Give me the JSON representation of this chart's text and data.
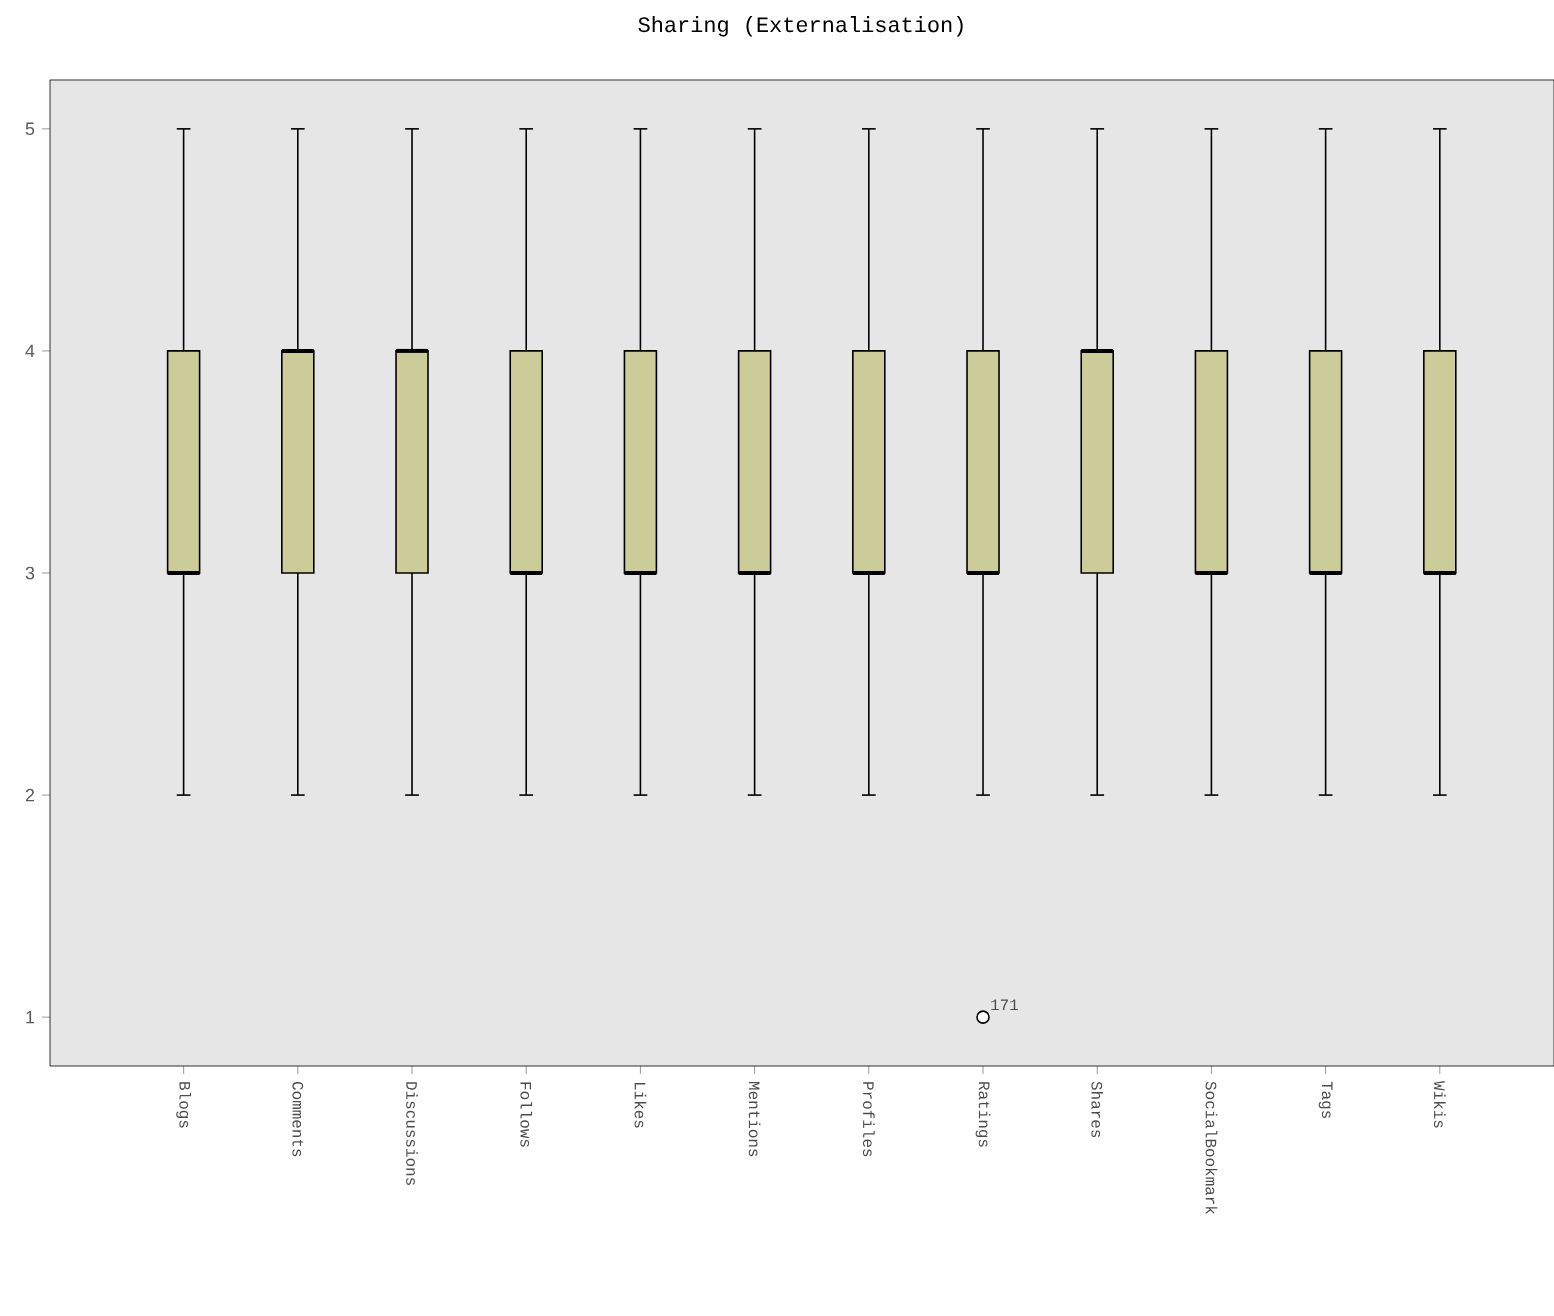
{
  "chart_data": {
    "type": "box",
    "title": "Sharing (Externalisation)",
    "categories": [
      "Blogs",
      "Comments",
      "Discussions",
      "Follows",
      "Likes",
      "Mentions",
      "Profiles",
      "Ratings",
      "Shares",
      "SocialBookmark",
      "Tags",
      "Wikis"
    ],
    "color": "#cccc99",
    "boxes": [
      {
        "low": 2,
        "q1": 3,
        "median": 3,
        "q3": 4,
        "high": 5
      },
      {
        "low": 2,
        "q1": 3,
        "median": 4,
        "q3": 4,
        "high": 5
      },
      {
        "low": 2,
        "q1": 3,
        "median": 4,
        "q3": 4,
        "high": 5
      },
      {
        "low": 2,
        "q1": 3,
        "median": 3,
        "q3": 4,
        "high": 5
      },
      {
        "low": 2,
        "q1": 3,
        "median": 3,
        "q3": 4,
        "high": 5
      },
      {
        "low": 2,
        "q1": 3,
        "median": 3,
        "q3": 4,
        "high": 5
      },
      {
        "low": 2,
        "q1": 3,
        "median": 3,
        "q3": 4,
        "high": 5
      },
      {
        "low": 2,
        "q1": 3,
        "median": 3,
        "q3": 4,
        "high": 5,
        "outliers": [
          1
        ]
      },
      {
        "low": 2,
        "q1": 3,
        "median": 4,
        "q3": 4,
        "high": 5
      },
      {
        "low": 2,
        "q1": 3,
        "median": 3,
        "q3": 4,
        "high": 5
      },
      {
        "low": 2,
        "q1": 3,
        "median": 3,
        "q3": 4,
        "high": 5
      },
      {
        "low": 2,
        "q1": 3,
        "median": 3,
        "q3": 4,
        "high": 5
      }
    ],
    "ylim": [
      0.78,
      5.22
    ],
    "yticks": [
      1,
      2,
      3,
      4,
      5
    ],
    "grid": false,
    "annotations": [
      "171"
    ]
  }
}
